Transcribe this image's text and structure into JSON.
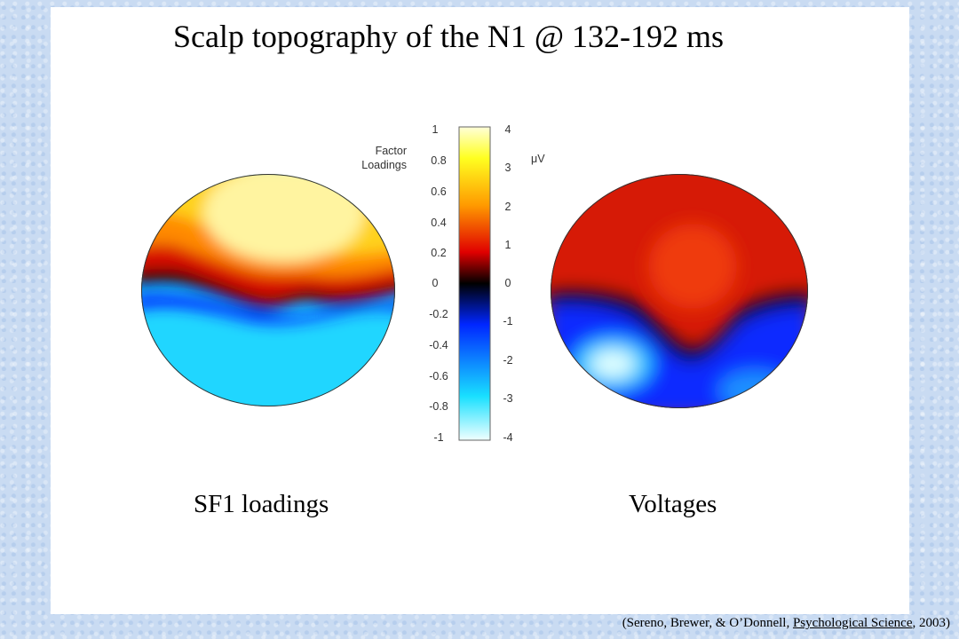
{
  "title": "Scalp topography of the N1 @ 132-192 ms",
  "colorbar": {
    "left_axis_label_line1": "Factor",
    "left_axis_label_line2": "Loadings",
    "right_axis_label": "μV",
    "left_ticks": [
      "1",
      "0.8",
      "0.6",
      "0.4",
      "0.2",
      "0",
      "-0.2",
      "-0.4",
      "-0.6",
      "-0.8",
      "-1"
    ],
    "right_ticks": [
      "4",
      "3",
      "2",
      "1",
      "0",
      "-1",
      "-2",
      "-3",
      "-4"
    ],
    "colors": [
      "#f0ffff",
      "#19e0ff",
      "#0026ff",
      "#000000",
      "#e00000",
      "#ff9a00",
      "#ffff20",
      "#ffffd8"
    ]
  },
  "maps": {
    "left_label": "SF1 loadings",
    "right_label": "Voltages"
  },
  "citation": {
    "open": "(Sereno, Brewer, & O’Donnell, ",
    "journal": "Psychological Science",
    "close": ", 2003)"
  }
}
